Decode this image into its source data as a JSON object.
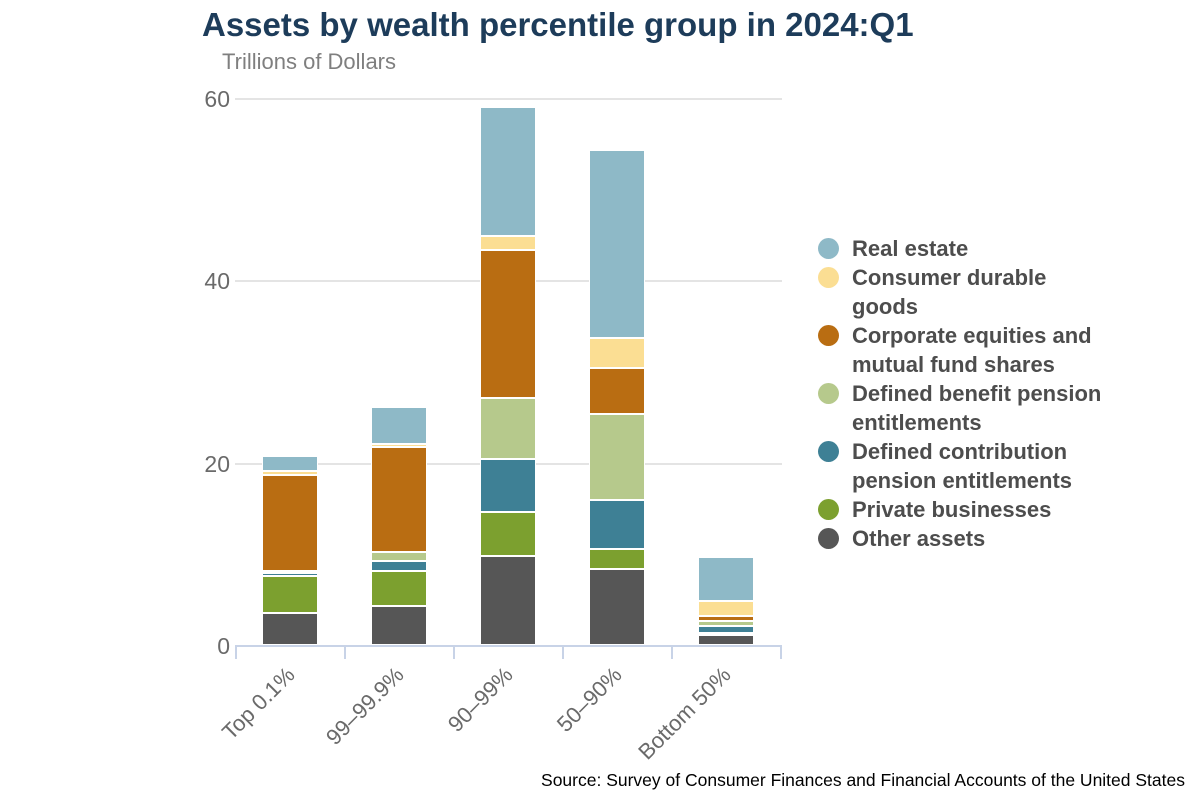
{
  "title": "Assets by wealth percentile group in 2024:Q1",
  "subtitle": "Trillions of Dollars",
  "source": "Source: Survey of Consumer Finances and Financial Accounts of the United States",
  "colors": {
    "title": "#1d3c5a",
    "subtitle": "#7f7f7f",
    "axis_line": "#c8d3e7",
    "gridline": "#e4e4e4",
    "axis_text": "#6a6a6a",
    "legend_text": "#4d4d4d"
  },
  "chart_data": {
    "type": "bar",
    "stacked": true,
    "title": "Assets by wealth percentile group in 2024:Q1",
    "subtitle": "Trillions of Dollars",
    "xlabel": "",
    "ylabel": "Trillions of Dollars",
    "ylim": [
      0,
      60
    ],
    "yticks": [
      "0",
      "20",
      "40",
      "60"
    ],
    "grid": true,
    "legend_position": "right",
    "categories": [
      "Top 0.1%",
      "99–99.9%",
      "90–99%",
      "50–90%",
      "Bottom 50%"
    ],
    "series": [
      {
        "name": "Real estate",
        "color": "#8eb9c7",
        "values": [
          1.6,
          4.1,
          14.1,
          20.6,
          4.8
        ]
      },
      {
        "name": "Consumer durable goods",
        "color": "#fbde93",
        "values": [
          0.5,
          0.3,
          1.6,
          3.3,
          1.6
        ]
      },
      {
        "name": "Corporate equities and mutual fund shares",
        "color": "#b96d12",
        "values": [
          10.5,
          11.5,
          16.2,
          5.1,
          0.6
        ]
      },
      {
        "name": "Defined benefit pension entitlements",
        "color": "#b6c98c",
        "values": [
          0.1,
          1.0,
          6.7,
          9.4,
          0.5
        ]
      },
      {
        "name": "Defined contribution pension entitlements",
        "color": "#3e8095",
        "values": [
          0.3,
          1.1,
          5.8,
          5.4,
          0.8
        ]
      },
      {
        "name": "Private businesses",
        "color": "#7ca02f",
        "values": [
          4.1,
          3.8,
          4.8,
          2.2,
          0.1
        ]
      },
      {
        "name": "Other assets",
        "color": "#565656",
        "values": [
          3.5,
          4.3,
          9.8,
          8.3,
          1.1
        ]
      }
    ],
    "totals": [
      20.6,
      26.1,
      59.0,
      54.3,
      9.5
    ]
  }
}
